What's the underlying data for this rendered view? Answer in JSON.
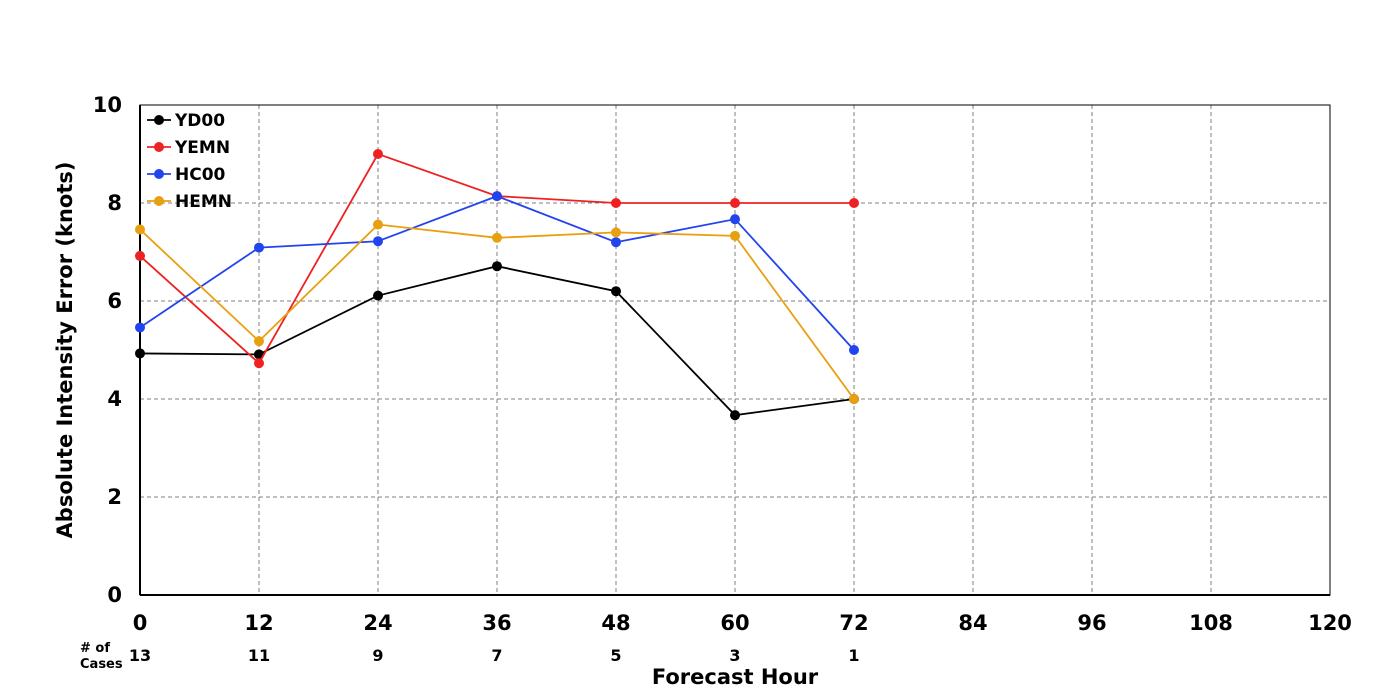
{
  "chart_data": {
    "type": "line",
    "title": "",
    "xlabel": "Forecast Hour",
    "ylabel": "Absolute Intensity Error (knots)",
    "xlim": [
      0,
      120
    ],
    "ylim": [
      0,
      10
    ],
    "xticks": [
      "0",
      "12",
      "24",
      "36",
      "48",
      "60",
      "72",
      "84",
      "96",
      "108",
      "120"
    ],
    "yticks": [
      "0",
      "2",
      "4",
      "6",
      "8",
      "10"
    ],
    "grid": true,
    "legend_position": "top-left",
    "x": [
      0,
      12,
      24,
      36,
      48,
      60,
      72
    ],
    "series": [
      {
        "name": "YD00",
        "color": "#000000",
        "values": [
          4.93,
          4.91,
          6.11,
          6.71,
          6.2,
          3.67,
          4.0
        ]
      },
      {
        "name": "YEMN",
        "color": "#ee2222",
        "values": [
          6.92,
          4.73,
          9.0,
          8.14,
          8.0,
          8.0,
          8.0
        ]
      },
      {
        "name": "HC00",
        "color": "#2244ee",
        "values": [
          5.46,
          7.09,
          7.22,
          8.14,
          7.2,
          7.67,
          5.0
        ]
      },
      {
        "name": "HEMN",
        "color": "#e8a010",
        "values": [
          7.46,
          5.18,
          7.56,
          7.29,
          7.4,
          7.33,
          4.0
        ]
      }
    ],
    "cases": {
      "label_line1": "# of",
      "label_line2": "Cases",
      "x": [
        0,
        12,
        24,
        36,
        48,
        60,
        72
      ],
      "values": [
        "13",
        "11",
        "9",
        "7",
        "5",
        "3",
        "1"
      ]
    }
  }
}
